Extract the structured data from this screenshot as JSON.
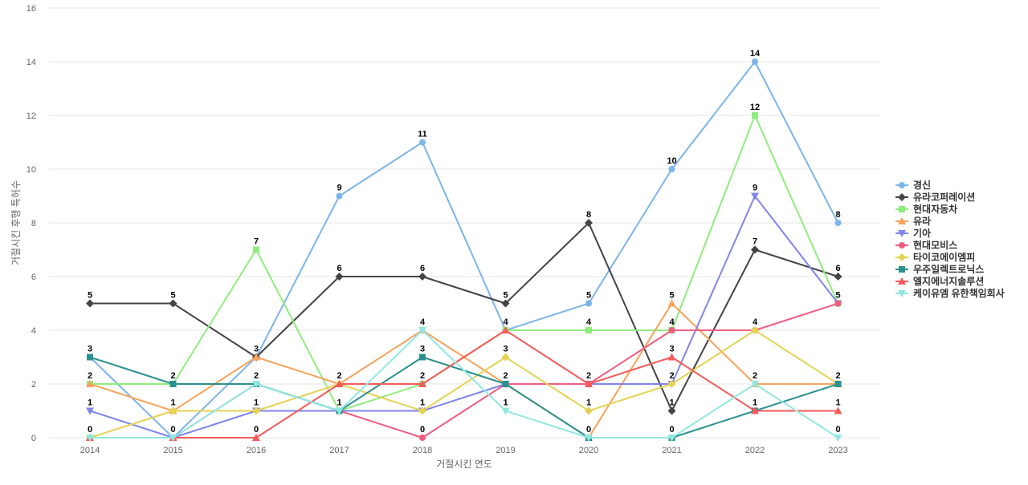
{
  "chart_data": {
    "type": "line",
    "title": "",
    "xlabel": "거절시킨 연도",
    "ylabel": "거절시킨 후행 특허수",
    "x": [
      "2014",
      "2015",
      "2016",
      "2017",
      "2018",
      "2019",
      "2020",
      "2021",
      "2022",
      "2023"
    ],
    "ylim": [
      0,
      16
    ],
    "yticks": [
      0,
      2,
      4,
      6,
      8,
      10,
      12,
      14,
      16
    ],
    "grid": true,
    "legend_position": "right",
    "series": [
      {
        "name": "경신",
        "color": "#7cb5ec",
        "marker": "circle",
        "values": [
          3,
          0,
          3,
          9,
          11,
          4,
          5,
          10,
          14,
          8
        ]
      },
      {
        "name": "유라코퍼레이션",
        "color": "#434348",
        "marker": "diamond",
        "values": [
          5,
          5,
          3,
          6,
          6,
          5,
          8,
          1,
          7,
          6
        ]
      },
      {
        "name": "현대자동차",
        "color": "#90ed7d",
        "marker": "square",
        "values": [
          2,
          2,
          7,
          1,
          2,
          4,
          4,
          4,
          12,
          5
        ]
      },
      {
        "name": "유라",
        "color": "#f7a35c",
        "marker": "triangle",
        "values": [
          2,
          1,
          3,
          2,
          4,
          2,
          0,
          5,
          2,
          2
        ]
      },
      {
        "name": "기아",
        "color": "#8085e9",
        "marker": "triangle-down",
        "values": [
          1,
          0,
          1,
          1,
          1,
          2,
          2,
          2,
          9,
          5
        ]
      },
      {
        "name": "현대모비스",
        "color": "#f15c80",
        "marker": "circle",
        "values": [
          0,
          0,
          2,
          1,
          0,
          2,
          2,
          4,
          4,
          5
        ]
      },
      {
        "name": "타이코에이엠피",
        "color": "#e4d354",
        "marker": "diamond",
        "values": [
          0,
          1,
          1,
          2,
          1,
          3,
          1,
          2,
          4,
          2
        ]
      },
      {
        "name": "우주일렉트로닉스",
        "color": "#2b908f",
        "marker": "square",
        "values": [
          3,
          2,
          2,
          1,
          3,
          2,
          0,
          0,
          1,
          2
        ]
      },
      {
        "name": "엘지에너지솔루션",
        "color": "#f45b5b",
        "marker": "triangle",
        "values": [
          0,
          0,
          0,
          2,
          2,
          4,
          2,
          3,
          1,
          1
        ]
      },
      {
        "name": "케이유엠 유한책임회사",
        "color": "#91e8e1",
        "marker": "triangle-down",
        "values": [
          0,
          0,
          2,
          1,
          4,
          1,
          0,
          0,
          2,
          0
        ]
      }
    ],
    "data_labels": [
      {
        "x": "2014",
        "text": "5"
      },
      {
        "x": "2014",
        "text": "3"
      },
      {
        "x": "2014",
        "text": "2"
      },
      {
        "x": "2014",
        "text": "1"
      },
      {
        "x": "2014",
        "text": "0"
      },
      {
        "x": "2015",
        "text": "5"
      },
      {
        "x": "2015",
        "text": "2"
      },
      {
        "x": "2015",
        "text": "1"
      },
      {
        "x": "2015",
        "text": "0"
      },
      {
        "x": "2016",
        "text": "7"
      },
      {
        "x": "2016",
        "text": "3"
      },
      {
        "x": "2016",
        "text": "2"
      },
      {
        "x": "2016",
        "text": "1"
      },
      {
        "x": "2016",
        "text": "0"
      },
      {
        "x": "2017",
        "text": "9"
      },
      {
        "x": "2017",
        "text": "6"
      },
      {
        "x": "2017",
        "text": "2"
      },
      {
        "x": "2017",
        "text": "1"
      },
      {
        "x": "2018",
        "text": "11"
      },
      {
        "x": "2018",
        "text": "6"
      },
      {
        "x": "2018",
        "text": "4"
      },
      {
        "x": "2018",
        "text": "3"
      },
      {
        "x": "2018",
        "text": "2"
      },
      {
        "x": "2018",
        "text": "1"
      },
      {
        "x": "2018",
        "text": "0"
      },
      {
        "x": "2019",
        "text": "5"
      },
      {
        "x": "2019",
        "text": "4"
      },
      {
        "x": "2019",
        "text": "3"
      },
      {
        "x": "2019",
        "text": "2"
      },
      {
        "x": "2019",
        "text": "1"
      },
      {
        "x": "2020",
        "text": "8"
      },
      {
        "x": "2020",
        "text": "5"
      },
      {
        "x": "2020",
        "text": "4"
      },
      {
        "x": "2020",
        "text": "2"
      },
      {
        "x": "2020",
        "text": "1"
      },
      {
        "x": "2020",
        "text": "0"
      },
      {
        "x": "2021",
        "text": "10"
      },
      {
        "x": "2021",
        "text": "5"
      },
      {
        "x": "2021",
        "text": "4"
      },
      {
        "x": "2021",
        "text": "3"
      },
      {
        "x": "2021",
        "text": "2"
      },
      {
        "x": "2021",
        "text": "1"
      },
      {
        "x": "2021",
        "text": "0"
      },
      {
        "x": "2022",
        "text": "14"
      },
      {
        "x": "2022",
        "text": "12"
      },
      {
        "x": "2022",
        "text": "9"
      },
      {
        "x": "2022",
        "text": "7"
      },
      {
        "x": "2022",
        "text": "4"
      },
      {
        "x": "2022",
        "text": "2"
      },
      {
        "x": "2022",
        "text": "1"
      },
      {
        "x": "2023",
        "text": "8"
      },
      {
        "x": "2023",
        "text": "6"
      },
      {
        "x": "2023",
        "text": "5"
      },
      {
        "x": "2023",
        "text": "2"
      },
      {
        "x": "2023",
        "text": "1"
      },
      {
        "x": "2023",
        "text": "0"
      }
    ]
  }
}
